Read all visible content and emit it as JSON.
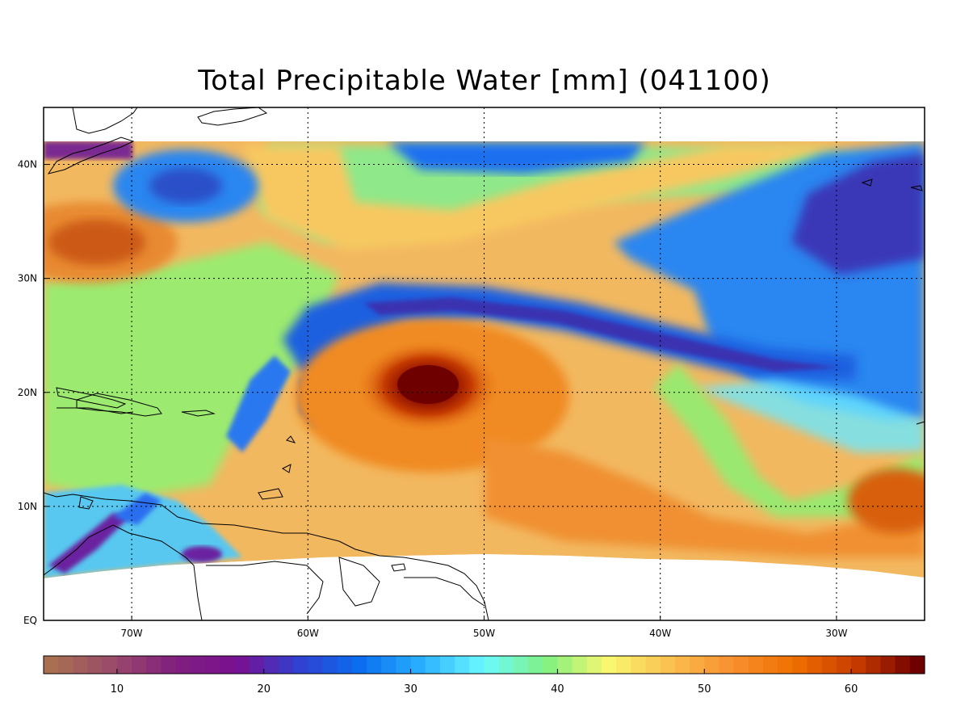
{
  "title": "Total Precipitable Water [mm]  (041100)",
  "map": {
    "lon_range": [
      -75,
      -25
    ],
    "lat_range": [
      0,
      45
    ],
    "data_lat_range": [
      4,
      42
    ],
    "grid": true,
    "lon_ticks": [
      {
        "lon": -70,
        "label": "70W"
      },
      {
        "lon": -60,
        "label": "60W"
      },
      {
        "lon": -50,
        "label": "50W"
      },
      {
        "lon": -40,
        "label": "40W"
      },
      {
        "lon": -30,
        "label": "30W"
      }
    ],
    "lat_ticks": [
      {
        "lat": 0,
        "label": "EQ"
      },
      {
        "lat": 10,
        "label": "10N"
      },
      {
        "lat": 20,
        "label": "20N"
      },
      {
        "lat": 30,
        "label": "30N"
      },
      {
        "lat": 40,
        "label": "40N"
      }
    ],
    "features": [
      {
        "name": "hurricane-core",
        "lon": -53,
        "lat": 20.5,
        "value": 66
      },
      {
        "name": "dry-northeast",
        "lon": -28,
        "lat": 38,
        "value": 18
      },
      {
        "name": "moist-southeast",
        "lon": -40,
        "lat": 9,
        "value": 54
      }
    ]
  },
  "colorbar": {
    "min": 5,
    "max": 65,
    "ticks": [
      10,
      20,
      30,
      40,
      50,
      60
    ],
    "colors": [
      "#a87050",
      "#9a4a6a",
      "#80207e",
      "#7a1090",
      "#3040d0",
      "#0a6ef0",
      "#2ab0ff",
      "#6cfaff",
      "#80f080",
      "#f8f870",
      "#fac050",
      "#f89030",
      "#f07000",
      "#c83c00",
      "#6e0000"
    ]
  }
}
